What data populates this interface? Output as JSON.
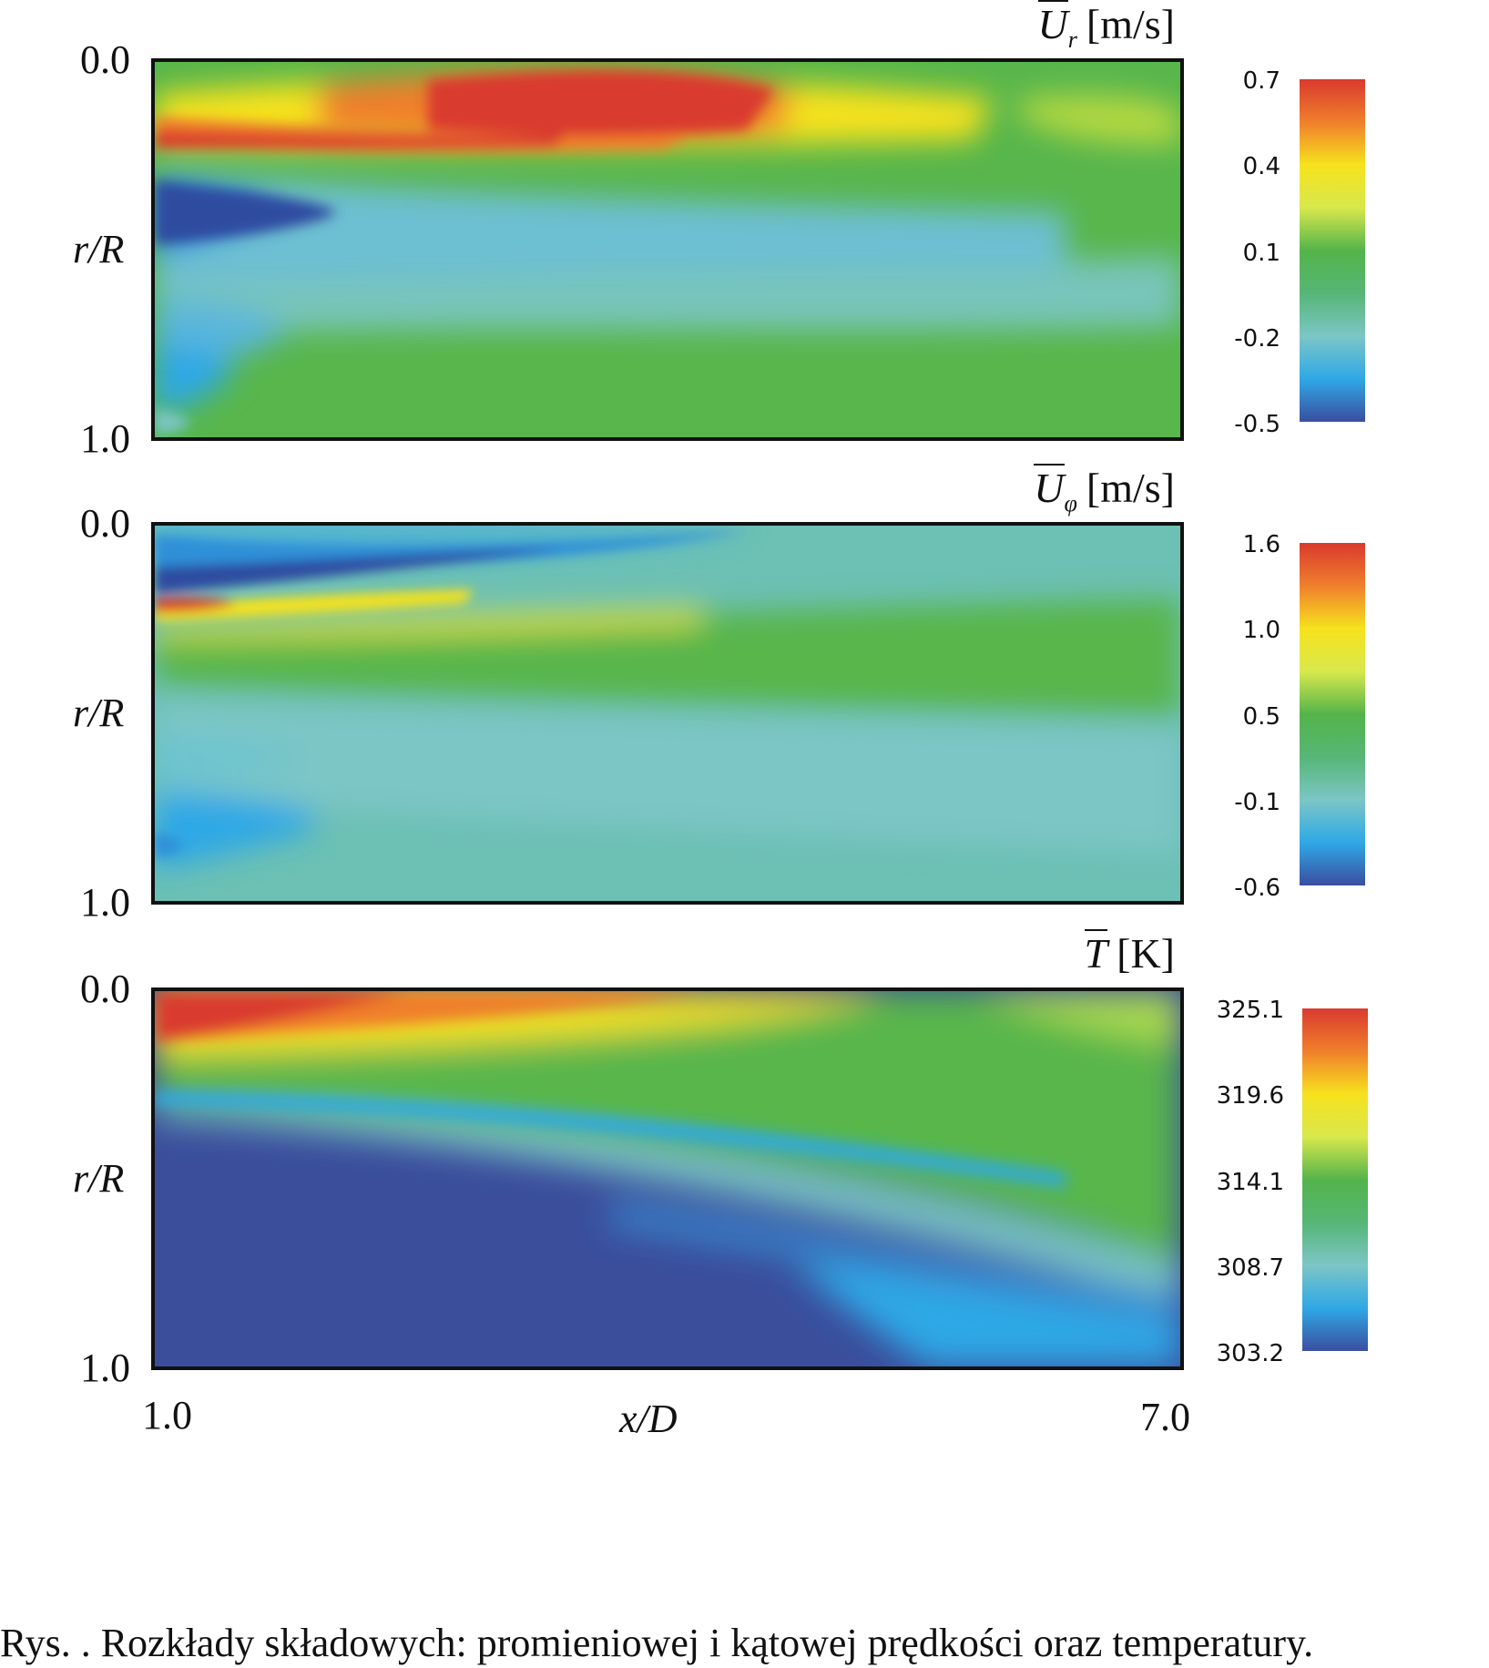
{
  "chart_data": [
    {
      "type": "heatmap",
      "title_symbol": "U",
      "title_subscript": "r",
      "title_unit": "[m/s]",
      "ylabel": "r/R",
      "y_ticks": [
        "0.0",
        "1.0"
      ],
      "ylim": [
        0.0,
        1.0
      ],
      "xlim": [
        1.0,
        7.0
      ],
      "colorbar_ticks": [
        "0.7",
        "0.4",
        "0.1",
        "-0.2",
        "-0.5"
      ],
      "value_range": [
        -0.5,
        0.7
      ]
    },
    {
      "type": "heatmap",
      "title_symbol": "U",
      "title_subscript": "φ",
      "title_unit": "[m/s]",
      "ylabel": "r/R",
      "y_ticks": [
        "0.0",
        "1.0"
      ],
      "ylim": [
        0.0,
        1.0
      ],
      "xlim": [
        1.0,
        7.0
      ],
      "colorbar_ticks": [
        "1.6",
        "1.0",
        "0.5",
        "-0.1",
        "-0.6"
      ],
      "value_range": [
        -0.6,
        1.6
      ]
    },
    {
      "type": "heatmap",
      "title_symbol": "T",
      "title_subscript": "",
      "title_unit": "[K]",
      "ylabel": "r/R",
      "y_ticks": [
        "0.0",
        "1.0"
      ],
      "ylim": [
        0.0,
        1.0
      ],
      "xlim": [
        1.0,
        7.0
      ],
      "colorbar_ticks": [
        "325.1",
        "319.6",
        "314.1",
        "308.7",
        "303.2"
      ],
      "value_range": [
        303.2,
        325.1
      ]
    }
  ],
  "x_axis": {
    "label": "x/D",
    "ticks": [
      "1.0",
      "7.0"
    ]
  },
  "colormap": [
    "#d93a2e",
    "#f07f2c",
    "#f6e21d",
    "#d8e84c",
    "#54b44a",
    "#56b676",
    "#7cc6c6",
    "#2fa8e6",
    "#3a4ea0"
  ],
  "caption": "Rys. . Rozkłady składowych: promieniowej i kątowej prędkości oraz temperatury."
}
